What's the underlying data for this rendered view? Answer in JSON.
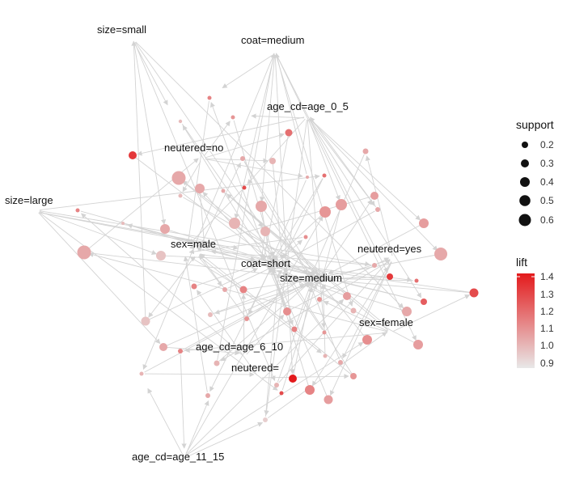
{
  "graph": {
    "item_nodes": [
      {
        "id": "size_small",
        "label": "size=small"
      },
      {
        "id": "coat_medium",
        "label": "coat=medium"
      },
      {
        "id": "age_0_5",
        "label": "age_cd=age_0_5"
      },
      {
        "id": "neutered_no",
        "label": "neutered=no"
      },
      {
        "id": "size_large",
        "label": "size=large"
      },
      {
        "id": "sex_male",
        "label": "sex=male"
      },
      {
        "id": "coat_short",
        "label": "coat=short"
      },
      {
        "id": "neutered_yes",
        "label": "neutered=yes"
      },
      {
        "id": "size_medium",
        "label": "size=medium"
      },
      {
        "id": "sex_female",
        "label": "sex=female"
      },
      {
        "id": "age_6_10",
        "label": "age_cd=age_6_10"
      },
      {
        "id": "neutered_blank",
        "label": "neutered="
      },
      {
        "id": "age_11_15",
        "label": "age_cd=age_11_15"
      }
    ],
    "edge_color": "#d3d3d3"
  },
  "legend": {
    "support": {
      "title": "support",
      "items": [
        "0.2",
        "0.3",
        "0.4",
        "0.5",
        "0.6"
      ],
      "values": [
        0.2,
        0.3,
        0.4,
        0.5,
        0.6
      ]
    },
    "lift": {
      "title": "lift",
      "ticks": [
        "1.4",
        "1.3",
        "1.2",
        "1.1",
        "1.0",
        "0.9"
      ],
      "range": [
        0.88,
        1.43
      ],
      "color_low": "#e8e8e8",
      "color_high": "#e31a1c"
    }
  }
}
